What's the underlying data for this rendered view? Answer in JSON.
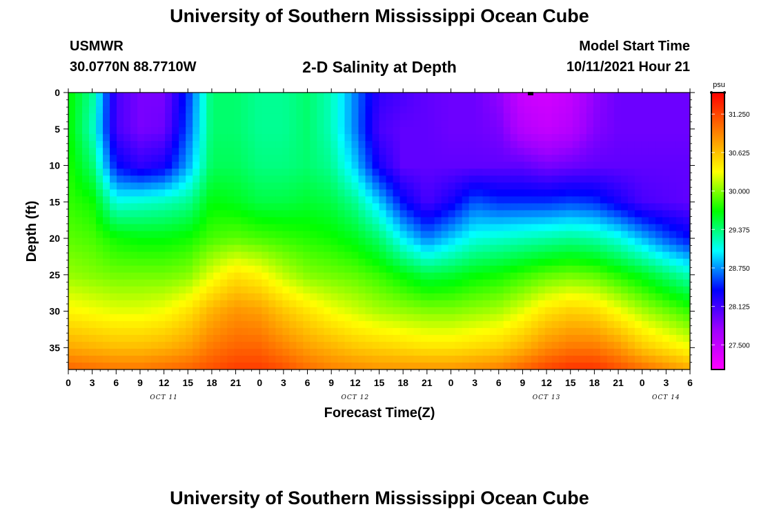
{
  "header": {
    "title": "University of Southern Mississippi Ocean Cube",
    "station": "USMWR",
    "coordinates": "30.0770N  88.7710W",
    "plot_title": "2-D Salinity at Depth",
    "model_start_label": "Model Start Time",
    "model_start_value": "10/11/2021 Hour 21"
  },
  "footer": {
    "title": "University of Southern Mississippi Ocean Cube"
  },
  "chart_data": {
    "type": "heatmap",
    "title": "2-D Salinity at Depth",
    "xlabel": "Forecast Time(Z)",
    "ylabel": "Depth (ft)",
    "x_ticks": [
      "0",
      "3",
      "6",
      "9",
      "12",
      "15",
      "18",
      "21",
      "0",
      "3",
      "6",
      "9",
      "12",
      "15",
      "18",
      "21",
      "0",
      "3",
      "6",
      "9",
      "12",
      "15",
      "18",
      "21",
      "0",
      "3",
      "6"
    ],
    "x_date_labels": [
      {
        "label": "OCT 11",
        "hour_index": 4
      },
      {
        "label": "OCT 12",
        "hour_index": 12
      },
      {
        "label": "OCT 13",
        "hour_index": 20
      },
      {
        "label": "OCT 14",
        "hour_index": 25
      }
    ],
    "x_hours_range": [
      0,
      78
    ],
    "y_ticks": [
      0,
      5,
      10,
      15,
      20,
      25,
      30,
      35
    ],
    "ylim": [
      0,
      38
    ],
    "y_inverted": true,
    "colorbar": {
      "unit": "psu",
      "ticks": [
        "31.250",
        "30.625",
        "30.000",
        "29.375",
        "28.750",
        "28.125",
        "27.500"
      ],
      "range": [
        27.1,
        31.6
      ],
      "colors": [
        "#ff00ff",
        "#a000ff",
        "#0000ff",
        "#00ffff",
        "#00ff00",
        "#ffff00",
        "#ff8000",
        "#ff0000"
      ]
    },
    "surface_marker_hour": 58,
    "salinity_profiles": [
      {
        "hour": 0,
        "depth": [
          0,
          5,
          10,
          15,
          20,
          25,
          30,
          35,
          38
        ],
        "psu": [
          29.7,
          29.7,
          29.75,
          29.8,
          29.9,
          30.05,
          30.35,
          30.75,
          31.1
        ]
      },
      {
        "hour": 3,
        "depth": [
          0,
          5,
          10,
          15,
          20,
          25,
          30,
          35,
          38
        ],
        "psu": [
          29.3,
          29.2,
          29.4,
          29.7,
          29.85,
          30.0,
          30.3,
          30.7,
          31.05
        ]
      },
      {
        "hour": 6,
        "depth": [
          0,
          5,
          10,
          15,
          20,
          25,
          30,
          35,
          38
        ],
        "psu": [
          28.1,
          28.1,
          28.4,
          29.1,
          29.7,
          29.95,
          30.25,
          30.65,
          31.0
        ]
      },
      {
        "hour": 9,
        "depth": [
          0,
          5,
          10,
          15,
          20,
          25,
          30,
          35,
          38
        ],
        "psu": [
          27.9,
          27.9,
          28.2,
          29.15,
          29.65,
          29.95,
          30.25,
          30.65,
          31.0
        ]
      },
      {
        "hour": 12,
        "depth": [
          0,
          5,
          10,
          15,
          20,
          25,
          30,
          35,
          38
        ],
        "psu": [
          27.9,
          27.95,
          28.3,
          29.2,
          29.65,
          29.95,
          30.3,
          30.7,
          31.05
        ]
      },
      {
        "hour": 15,
        "depth": [
          0,
          5,
          10,
          15,
          20,
          25,
          30,
          35,
          38
        ],
        "psu": [
          28.5,
          28.6,
          28.8,
          29.3,
          29.7,
          30.0,
          30.45,
          30.8,
          31.1
        ]
      },
      {
        "hour": 18,
        "depth": [
          0,
          5,
          10,
          15,
          20,
          25,
          30,
          35,
          38
        ],
        "psu": [
          29.4,
          29.4,
          29.45,
          29.65,
          29.85,
          30.25,
          30.7,
          31.0,
          31.2
        ]
      },
      {
        "hour": 21,
        "depth": [
          0,
          5,
          10,
          15,
          20,
          25,
          30,
          35,
          38
        ],
        "psu": [
          29.4,
          29.4,
          29.45,
          29.6,
          29.9,
          30.45,
          30.85,
          31.1,
          31.3
        ]
      },
      {
        "hour": 24,
        "depth": [
          0,
          5,
          10,
          15,
          20,
          25,
          30,
          35,
          38
        ],
        "psu": [
          29.3,
          29.3,
          29.35,
          29.5,
          29.85,
          30.35,
          30.8,
          31.1,
          31.3
        ]
      },
      {
        "hour": 27,
        "depth": [
          0,
          5,
          10,
          15,
          20,
          25,
          30,
          35,
          38
        ],
        "psu": [
          29.3,
          29.3,
          29.35,
          29.5,
          29.8,
          30.15,
          30.6,
          30.95,
          31.2
        ]
      },
      {
        "hour": 30,
        "depth": [
          0,
          5,
          10,
          15,
          20,
          25,
          30,
          35,
          38
        ],
        "psu": [
          29.4,
          29.4,
          29.4,
          29.55,
          29.75,
          30.0,
          30.45,
          30.8,
          31.05
        ]
      },
      {
        "hour": 33,
        "depth": [
          0,
          5,
          10,
          15,
          20,
          25,
          30,
          35,
          38
        ],
        "psu": [
          29.2,
          29.2,
          29.3,
          29.5,
          29.7,
          29.95,
          30.3,
          30.7,
          30.95
        ]
      },
      {
        "hour": 36,
        "depth": [
          0,
          5,
          10,
          15,
          20,
          25,
          30,
          35,
          38
        ],
        "psu": [
          28.7,
          28.7,
          28.9,
          29.3,
          29.6,
          29.9,
          30.2,
          30.6,
          30.9
        ]
      },
      {
        "hour": 39,
        "depth": [
          0,
          5,
          10,
          15,
          20,
          25,
          30,
          35,
          38
        ],
        "psu": [
          28.2,
          28.1,
          28.3,
          28.9,
          29.4,
          29.8,
          30.1,
          30.55,
          30.85
        ]
      },
      {
        "hour": 42,
        "depth": [
          0,
          5,
          10,
          15,
          20,
          25,
          30,
          35,
          38
        ],
        "psu": [
          28.1,
          28.0,
          28.0,
          28.4,
          29.0,
          29.65,
          30.05,
          30.5,
          30.85
        ]
      },
      {
        "hour": 45,
        "depth": [
          0,
          5,
          10,
          15,
          20,
          25,
          30,
          35,
          38
        ],
        "psu": [
          28.0,
          28.0,
          28.0,
          28.1,
          28.7,
          29.5,
          30.0,
          30.45,
          30.85
        ]
      },
      {
        "hour": 48,
        "depth": [
          0,
          5,
          10,
          15,
          20,
          25,
          30,
          35,
          38
        ],
        "psu": [
          27.95,
          27.95,
          28.0,
          28.3,
          28.9,
          29.55,
          30.0,
          30.45,
          30.85
        ]
      },
      {
        "hour": 51,
        "depth": [
          0,
          5,
          10,
          15,
          20,
          25,
          30,
          35,
          38
        ],
        "psu": [
          27.95,
          27.95,
          28.0,
          28.6,
          29.1,
          29.65,
          30.05,
          30.5,
          30.9
        ]
      },
      {
        "hour": 54,
        "depth": [
          0,
          5,
          10,
          15,
          20,
          25,
          30,
          35,
          38
        ],
        "psu": [
          27.8,
          27.9,
          28.0,
          28.5,
          29.15,
          29.7,
          30.1,
          30.55,
          30.95
        ]
      },
      {
        "hour": 57,
        "depth": [
          0,
          5,
          10,
          15,
          20,
          25,
          30,
          35,
          38
        ],
        "psu": [
          27.45,
          27.6,
          28.0,
          28.5,
          29.2,
          29.8,
          30.25,
          30.7,
          31.1
        ]
      },
      {
        "hour": 60,
        "depth": [
          0,
          5,
          10,
          15,
          20,
          25,
          30,
          35,
          38
        ],
        "psu": [
          27.4,
          27.5,
          27.9,
          28.5,
          29.25,
          29.9,
          30.45,
          30.9,
          31.25
        ]
      },
      {
        "hour": 63,
        "depth": [
          0,
          5,
          10,
          15,
          20,
          25,
          30,
          35,
          38
        ],
        "psu": [
          27.5,
          27.6,
          27.95,
          28.55,
          29.3,
          29.95,
          30.55,
          31.0,
          31.35
        ]
      },
      {
        "hour": 66,
        "depth": [
          0,
          5,
          10,
          15,
          20,
          25,
          30,
          35,
          38
        ],
        "psu": [
          27.8,
          27.85,
          28.0,
          28.5,
          29.25,
          29.9,
          30.5,
          31.0,
          31.35
        ]
      },
      {
        "hour": 69,
        "depth": [
          0,
          5,
          10,
          15,
          20,
          25,
          30,
          35,
          38
        ],
        "psu": [
          27.95,
          27.95,
          28.0,
          28.3,
          29.1,
          29.75,
          30.3,
          30.85,
          31.2
        ]
      },
      {
        "hour": 72,
        "depth": [
          0,
          5,
          10,
          15,
          20,
          25,
          30,
          35,
          38
        ],
        "psu": [
          27.95,
          27.95,
          28.0,
          28.1,
          28.85,
          29.6,
          30.1,
          30.6,
          31.05
        ]
      },
      {
        "hour": 75,
        "depth": [
          0,
          5,
          10,
          15,
          20,
          25,
          30,
          35,
          38
        ],
        "psu": [
          27.95,
          27.95,
          28.0,
          28.05,
          28.6,
          29.4,
          29.95,
          30.45,
          30.9
        ]
      },
      {
        "hour": 78,
        "depth": [
          0,
          5,
          10,
          15,
          20,
          25,
          30,
          35,
          38
        ],
        "psu": [
          27.95,
          27.95,
          28.0,
          28.0,
          28.4,
          29.2,
          29.8,
          30.3,
          30.75
        ]
      }
    ]
  }
}
